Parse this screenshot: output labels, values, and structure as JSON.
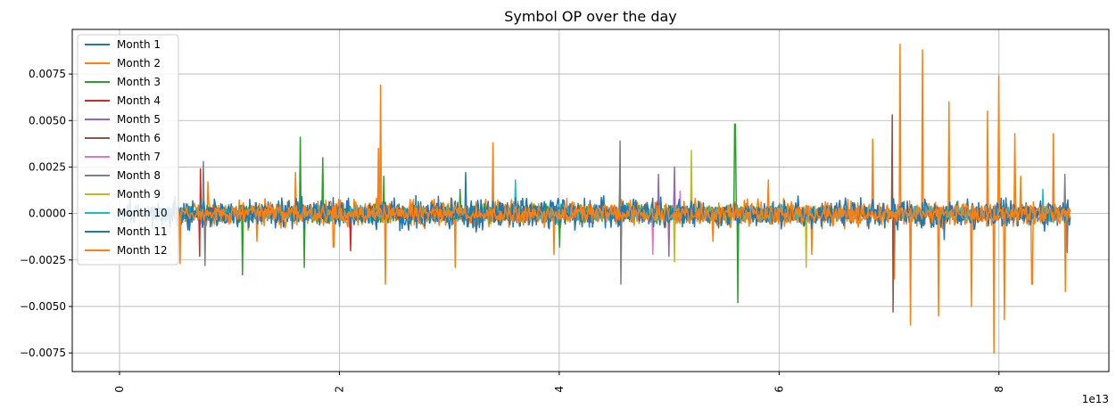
{
  "chart_data": {
    "type": "line",
    "title": "Symbol OP over the day",
    "xlabel": "",
    "ylabel": "",
    "x_offset_label": "1e13",
    "xlim": [
      -0.43,
      9.0
    ],
    "ylim": [
      -0.0085,
      0.0099
    ],
    "x_ticks": [
      0,
      2,
      4,
      6,
      8
    ],
    "x_tick_labels": [
      "0",
      "2",
      "4",
      "6",
      "8"
    ],
    "y_ticks": [
      -0.0075,
      -0.005,
      -0.0025,
      0.0,
      0.0025,
      0.005,
      0.0075
    ],
    "y_tick_labels": [
      "−0.0075",
      "−0.0050",
      "−0.0025",
      "0.0000",
      "0.0025",
      "0.0050",
      "0.0075"
    ],
    "grid": true,
    "legend_position": "top-left",
    "series": [
      {
        "name": "Month 1",
        "color": "#1f77b4",
        "x_start": 0.0,
        "x_end": 0.6,
        "amplitude": 0.0006,
        "spikes": [
          [
            0.1,
            0.0012
          ],
          [
            0.3,
            -0.0008
          ],
          [
            0.5,
            0.0009
          ]
        ]
      },
      {
        "name": "Month 2",
        "color": "#ff7f0e",
        "x_start": 0.6,
        "x_end": 8.65,
        "amplitude": 0.0009,
        "spikes": [
          [
            0.8,
            0.0017
          ],
          [
            1.25,
            -0.0015
          ],
          [
            1.6,
            0.0022
          ],
          [
            1.95,
            -0.0018
          ],
          [
            2.38,
            0.0069
          ],
          [
            2.42,
            -0.0038
          ],
          [
            3.05,
            -0.0029
          ],
          [
            3.4,
            0.0038
          ],
          [
            3.95,
            -0.0022
          ],
          [
            4.55,
            0.0012
          ],
          [
            5.4,
            -0.0015
          ],
          [
            5.9,
            0.0018
          ],
          [
            6.3,
            -0.0022
          ],
          [
            6.85,
            0.004
          ],
          [
            7.05,
            -0.0035
          ],
          [
            7.1,
            0.0091
          ],
          [
            7.2,
            -0.006
          ],
          [
            7.3,
            0.0088
          ],
          [
            7.45,
            -0.0055
          ],
          [
            7.55,
            0.006
          ],
          [
            7.75,
            -0.005
          ],
          [
            7.9,
            0.0055
          ],
          [
            7.95,
            -0.0075
          ],
          [
            8.0,
            0.0074
          ],
          [
            8.05,
            -0.0057
          ],
          [
            8.15,
            0.0043
          ],
          [
            8.3,
            -0.0038
          ],
          [
            8.5,
            0.0043
          ],
          [
            8.6,
            -0.0042
          ]
        ]
      },
      {
        "name": "Month 3",
        "color": "#2ca02c",
        "x_start": 0.6,
        "x_end": 5.7,
        "amplitude": 0.0006,
        "spikes": [
          [
            1.12,
            -0.0033
          ],
          [
            1.65,
            0.0041
          ],
          [
            1.68,
            -0.0029
          ],
          [
            1.85,
            0.003
          ],
          [
            2.4,
            0.002
          ],
          [
            3.1,
            0.0013
          ],
          [
            4.0,
            -0.0018
          ],
          [
            5.6,
            0.0048
          ],
          [
            5.62,
            -0.0048
          ]
        ]
      },
      {
        "name": "Month 4",
        "color": "#d62728",
        "x_start": 0.7,
        "x_end": 3.2,
        "amplitude": 0.0004,
        "spikes": [
          [
            0.74,
            0.0024
          ],
          [
            0.73,
            -0.0023
          ],
          [
            2.1,
            -0.002
          ]
        ]
      },
      {
        "name": "Month 5",
        "color": "#9467bd",
        "x_start": 3.5,
        "x_end": 5.2,
        "amplitude": 0.0004,
        "spikes": [
          [
            4.9,
            0.0021
          ],
          [
            5.05,
            0.0025
          ],
          [
            5.0,
            -0.0023
          ]
        ]
      },
      {
        "name": "Month 6",
        "color": "#8c564b",
        "x_start": 0.5,
        "x_end": 8.5,
        "amplitude": 0.0003,
        "spikes": [
          [
            7.03,
            0.0053
          ],
          [
            7.04,
            -0.0053
          ]
        ]
      },
      {
        "name": "Month 7",
        "color": "#e377c2",
        "x_start": 3.5,
        "x_end": 5.3,
        "amplitude": 0.0004,
        "spikes": [
          [
            4.85,
            -0.0022
          ],
          [
            5.1,
            0.0012
          ]
        ]
      },
      {
        "name": "Month 8",
        "color": "#7f7f7f",
        "x_start": 0.5,
        "x_end": 8.65,
        "amplitude": 0.0005,
        "spikes": [
          [
            0.76,
            0.0028
          ],
          [
            0.78,
            -0.0028
          ],
          [
            4.55,
            0.0039
          ],
          [
            4.56,
            -0.0038
          ],
          [
            8.6,
            0.0021
          ],
          [
            8.62,
            -0.0021
          ]
        ]
      },
      {
        "name": "Month 9",
        "color": "#bcbd22",
        "x_start": 4.8,
        "x_end": 6.6,
        "amplitude": 0.0005,
        "spikes": [
          [
            5.2,
            0.0034
          ],
          [
            5.05,
            -0.0026
          ],
          [
            6.25,
            0.0027
          ],
          [
            6.25,
            -0.0029
          ]
        ]
      },
      {
        "name": "Month 10",
        "color": "#17becf",
        "x_start": 0.3,
        "x_end": 8.65,
        "amplitude": 0.0005,
        "spikes": [
          [
            3.6,
            0.0018
          ],
          [
            8.4,
            0.0013
          ]
        ]
      },
      {
        "name": "Month 11",
        "color": "#1f77b4",
        "x_start": 0.3,
        "x_end": 8.65,
        "amplitude": 0.001,
        "spikes": [
          [
            3.15,
            0.0022
          ],
          [
            7.5,
            0.0014
          ],
          [
            7.5,
            -0.0014
          ]
        ]
      },
      {
        "name": "Month 12",
        "color": "#ff7f0e",
        "x_start": 0.5,
        "x_end": 8.65,
        "amplitude": 0.0006,
        "spikes": [
          [
            0.55,
            -0.0027
          ],
          [
            2.35,
            0.0035
          ],
          [
            8.2,
            0.002
          ]
        ]
      }
    ]
  }
}
